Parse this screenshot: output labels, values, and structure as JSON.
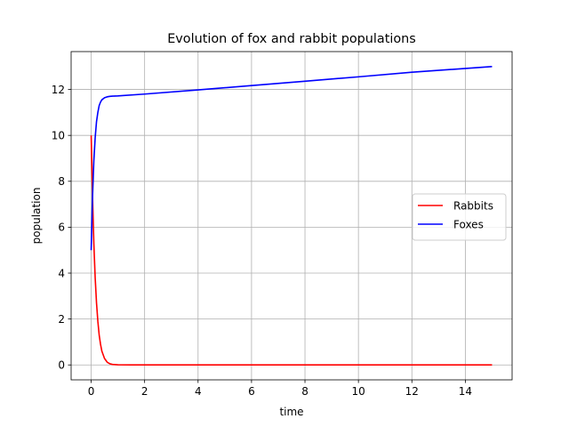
{
  "chart_data": {
    "type": "line",
    "title": "Evolution of fox and rabbit populations",
    "xlabel": "time",
    "ylabel": "population",
    "xlim": [
      -0.75,
      15.75
    ],
    "ylim": [
      -0.65,
      13.65
    ],
    "xticks": [
      0,
      2,
      4,
      6,
      8,
      10,
      12,
      14
    ],
    "yticks": [
      0,
      2,
      4,
      6,
      8,
      10,
      12
    ],
    "grid": true,
    "legend_position": "right",
    "series": [
      {
        "name": "Rabbits",
        "color": "#ff0000",
        "x": [
          0,
          0.05,
          0.1,
          0.15,
          0.2,
          0.25,
          0.3,
          0.35,
          0.4,
          0.5,
          0.6,
          0.7,
          0.8,
          1.0,
          1.5,
          2,
          4,
          6,
          8,
          10,
          12,
          15
        ],
        "y": [
          10,
          7.4,
          5.3,
          3.8,
          2.7,
          1.9,
          1.3,
          0.9,
          0.6,
          0.28,
          0.12,
          0.05,
          0.02,
          0.005,
          0,
          0,
          0,
          0,
          0,
          0,
          0,
          0
        ]
      },
      {
        "name": "Foxes",
        "color": "#0000ff",
        "x": [
          0,
          0.05,
          0.1,
          0.15,
          0.2,
          0.25,
          0.3,
          0.35,
          0.4,
          0.5,
          0.6,
          0.7,
          0.8,
          1.0,
          2,
          4,
          6,
          8,
          10,
          12,
          15
        ],
        "y": [
          5,
          7.3,
          8.9,
          9.9,
          10.6,
          11.0,
          11.3,
          11.45,
          11.55,
          11.64,
          11.68,
          11.7,
          11.71,
          11.72,
          11.8,
          11.98,
          12.17,
          12.36,
          12.55,
          12.75,
          13.0
        ]
      }
    ]
  }
}
